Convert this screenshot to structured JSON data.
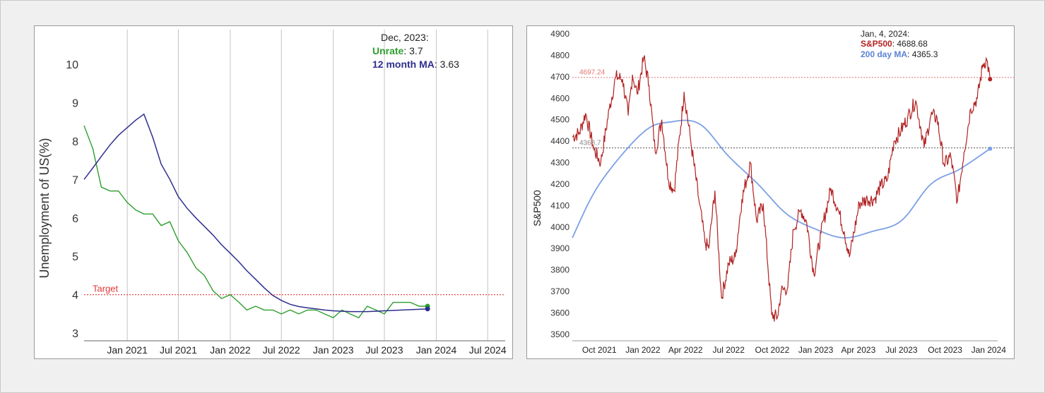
{
  "chart_data": [
    {
      "type": "line",
      "ylabel": "Unemployment of US(%)",
      "ylim": [
        2.8,
        10.9
      ],
      "yticks": [
        "3",
        "4",
        "5",
        "6",
        "7",
        "8",
        "9",
        "10"
      ],
      "xlim": [
        "2020-08-01",
        "2024-09-01"
      ],
      "xticks": [
        {
          "date": "2021-01-01",
          "label": "Jan 2021"
        },
        {
          "date": "2021-07-01",
          "label": "Jul 2021"
        },
        {
          "date": "2022-01-01",
          "label": "Jan 2022"
        },
        {
          "date": "2022-07-01",
          "label": "Jul 2022"
        },
        {
          "date": "2023-01-01",
          "label": "Jan 2023"
        },
        {
          "date": "2023-07-01",
          "label": "Jul 2023"
        },
        {
          "date": "2024-01-01",
          "label": "Jan 2024"
        },
        {
          "date": "2024-07-01",
          "label": "Jul 2024"
        }
      ],
      "grid": "vertical",
      "colors": {
        "unrate": "#2e9e2e",
        "ma": "#2e2e8f",
        "target": "#e53935"
      },
      "target": {
        "value": 4,
        "label": "Target"
      },
      "tooltip": {
        "date": "Dec, 2023:",
        "unrate_label": "Unrate",
        "unrate_value": ": 3.7",
        "ma_label": "12 month MA",
        "ma_value": ": 3.63"
      },
      "series": [
        {
          "name": "Unrate",
          "x": [
            "2020-08",
            "2020-09",
            "2020-10",
            "2020-11",
            "2020-12",
            "2021-01",
            "2021-02",
            "2021-03",
            "2021-04",
            "2021-05",
            "2021-06",
            "2021-07",
            "2021-08",
            "2021-09",
            "2021-10",
            "2021-11",
            "2021-12",
            "2022-01",
            "2022-02",
            "2022-03",
            "2022-04",
            "2022-05",
            "2022-06",
            "2022-07",
            "2022-08",
            "2022-09",
            "2022-10",
            "2022-11",
            "2022-12",
            "2023-01",
            "2023-02",
            "2023-03",
            "2023-04",
            "2023-05",
            "2023-06",
            "2023-07",
            "2023-08",
            "2023-09",
            "2023-10",
            "2023-11",
            "2023-12"
          ],
          "values": [
            8.4,
            7.8,
            6.8,
            6.7,
            6.7,
            6.4,
            6.2,
            6.1,
            6.1,
            5.8,
            5.9,
            5.4,
            5.1,
            4.7,
            4.5,
            4.1,
            3.9,
            4.0,
            3.8,
            3.6,
            3.7,
            3.6,
            3.6,
            3.5,
            3.6,
            3.5,
            3.6,
            3.6,
            3.5,
            3.4,
            3.6,
            3.5,
            3.4,
            3.7,
            3.6,
            3.5,
            3.8,
            3.8,
            3.8,
            3.7,
            3.7
          ]
        },
        {
          "name": "12 month MA",
          "x": [
            "2020-08",
            "2020-09",
            "2020-10",
            "2020-11",
            "2020-12",
            "2021-01",
            "2021-02",
            "2021-03",
            "2021-04",
            "2021-05",
            "2021-06",
            "2021-07",
            "2021-08",
            "2021-09",
            "2021-10",
            "2021-11",
            "2021-12",
            "2022-01",
            "2022-02",
            "2022-03",
            "2022-04",
            "2022-05",
            "2022-06",
            "2022-07",
            "2022-08",
            "2022-09",
            "2022-10",
            "2022-11",
            "2022-12",
            "2023-01",
            "2023-02",
            "2023-03",
            "2023-04",
            "2023-05",
            "2023-06",
            "2023-07",
            "2023-08",
            "2023-09",
            "2023-10",
            "2023-11",
            "2023-12"
          ],
          "values": [
            7.0,
            7.3,
            7.6,
            7.9,
            8.15,
            8.35,
            8.55,
            8.7,
            8.1,
            7.4,
            7.0,
            6.55,
            6.25,
            6.0,
            5.78,
            5.55,
            5.3,
            5.08,
            4.85,
            4.62,
            4.4,
            4.18,
            3.98,
            3.85,
            3.75,
            3.69,
            3.66,
            3.63,
            3.6,
            3.58,
            3.57,
            3.56,
            3.56,
            3.56,
            3.57,
            3.58,
            3.59,
            3.6,
            3.61,
            3.62,
            3.63
          ]
        }
      ]
    },
    {
      "type": "line",
      "ylabel": "S&P500",
      "ylim": [
        3470,
        4920
      ],
      "yticks": [
        "3500",
        "3600",
        "3700",
        "3800",
        "3900",
        "4000",
        "4100",
        "4200",
        "4300",
        "4400",
        "4500",
        "4600",
        "4700",
        "4800",
        "4900"
      ],
      "xlim": [
        "2021-08-05",
        "2024-01-20"
      ],
      "xticks": [
        {
          "date": "2021-10-01",
          "label": "Oct 2021"
        },
        {
          "date": "2022-01-01",
          "label": "Jan 2022"
        },
        {
          "date": "2022-04-01",
          "label": "Apr 2022"
        },
        {
          "date": "2022-07-01",
          "label": "Jul 2022"
        },
        {
          "date": "2022-10-01",
          "label": "Oct 2022"
        },
        {
          "date": "2023-01-01",
          "label": "Jan 2023"
        },
        {
          "date": "2023-04-01",
          "label": "Apr 2023"
        },
        {
          "date": "2023-07-01",
          "label": "Jul 2023"
        },
        {
          "date": "2023-10-01",
          "label": "Oct 2023"
        },
        {
          "date": "2024-01-01",
          "label": "Jan 2024"
        }
      ],
      "grid": "none",
      "colors": {
        "sp500": "#b22222",
        "ma200": "#7ba0e6",
        "ref_upper": "#e57373",
        "ref_lower": "#555555"
      },
      "reference_lines": [
        {
          "value": 4697.24,
          "label": "4697.24"
        },
        {
          "value": 4368.7,
          "label": "4368.7"
        }
      ],
      "tooltip": {
        "date": "Jan, 4, 2024:",
        "sp_label": "S&P500",
        "sp_value": ": 4688.68",
        "ma_label": "200 day MA",
        "ma_value": ": 4365.3"
      },
      "series": [
        {
          "name": "S&P500",
          "x": [
            "2021-08-05",
            "2021-08-20",
            "2021-09-02",
            "2021-09-20",
            "2021-10-04",
            "2021-10-22",
            "2021-11-05",
            "2021-11-19",
            "2021-12-01",
            "2021-12-10",
            "2021-12-20",
            "2022-01-03",
            "2022-01-14",
            "2022-01-27",
            "2022-02-10",
            "2022-02-24",
            "2022-03-08",
            "2022-03-29",
            "2022-04-12",
            "2022-04-29",
            "2022-05-12",
            "2022-05-20",
            "2022-06-02",
            "2022-06-16",
            "2022-07-01",
            "2022-07-15",
            "2022-07-29",
            "2022-08-16",
            "2022-08-29",
            "2022-09-12",
            "2022-09-30",
            "2022-10-12",
            "2022-10-20",
            "2022-11-03",
            "2022-11-15",
            "2022-12-01",
            "2022-12-13",
            "2022-12-28",
            "2023-01-12",
            "2023-02-02",
            "2023-02-16",
            "2023-03-02",
            "2023-03-13",
            "2023-04-03",
            "2023-04-20",
            "2023-05-05",
            "2023-05-18",
            "2023-06-01",
            "2023-06-15",
            "2023-06-30",
            "2023-07-14",
            "2023-07-31",
            "2023-08-10",
            "2023-08-18",
            "2023-09-01",
            "2023-09-14",
            "2023-09-29",
            "2023-10-13",
            "2023-10-27",
            "2023-11-10",
            "2023-11-24",
            "2023-12-08",
            "2023-12-20",
            "2023-12-28",
            "2024-01-04"
          ],
          "values": [
            4420,
            4440,
            4530,
            4360,
            4300,
            4550,
            4700,
            4690,
            4520,
            4710,
            4620,
            4790,
            4660,
            4350,
            4500,
            4220,
            4170,
            4630,
            4400,
            4130,
            3930,
            3900,
            4170,
            3670,
            3830,
            3860,
            4130,
            4300,
            4030,
            4110,
            3590,
            3580,
            3700,
            3720,
            3990,
            4080,
            4020,
            3780,
            3970,
            4180,
            4090,
            3980,
            3860,
            4110,
            4130,
            4130,
            4190,
            4220,
            4400,
            4450,
            4510,
            4590,
            4470,
            4370,
            4520,
            4510,
            4290,
            4330,
            4120,
            4350,
            4550,
            4600,
            4760,
            4780,
            4688.68
          ]
        },
        {
          "name": "200 day MA",
          "x": [
            "2021-08-05",
            "2021-10-01",
            "2022-01-01",
            "2022-03-01",
            "2022-05-01",
            "2022-07-01",
            "2022-09-01",
            "2022-11-01",
            "2023-01-01",
            "2023-03-01",
            "2023-05-01",
            "2023-07-01",
            "2023-09-01",
            "2023-11-01",
            "2024-01-04"
          ],
          "values": [
            3950,
            4200,
            4440,
            4490,
            4480,
            4330,
            4200,
            4060,
            3990,
            3950,
            3980,
            4030,
            4200,
            4270,
            4365.3
          ]
        }
      ]
    }
  ]
}
